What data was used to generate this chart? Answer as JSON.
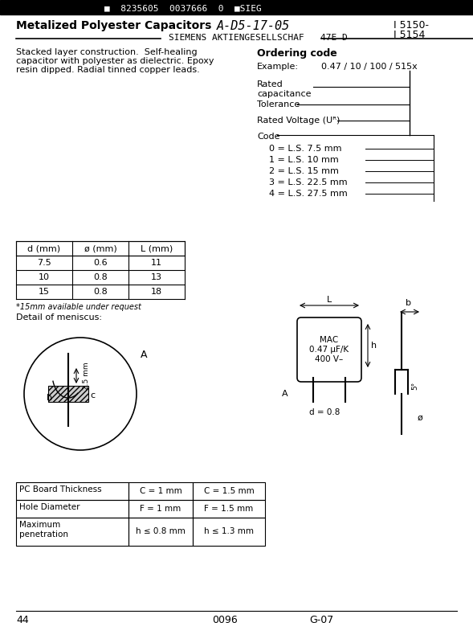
{
  "bg_color": "#ffffff",
  "title_barcode": "8235605  0037666  0",
  "title_sieg": "SIEG",
  "title_main": "Metalized Polyester Capacitors",
  "title_code": "A-D5-17-05",
  "title_part1": "I 5150-",
  "title_part2": "I 5154",
  "subtitle": "SIEMENS AKTIENGESELLSCHAF   47E D",
  "desc_line1": "Stacked layer construction.  Self-healing",
  "desc_line2": "capacitor with polyester as dielectric. Epoxy",
  "desc_line3": "resin dipped. Radial tinned copper leads.",
  "ordering_title": "Ordering code",
  "example_label": "Example:",
  "example_value": "0.47 / 10 / 100 / 515x",
  "labels": [
    "Rated\ncapacitance",
    "Tolerance",
    "Rated Voltage (U₀)",
    "Code"
  ],
  "code_items": [
    "0 = L.S. 7.5 mm",
    "1 = L.S. 10 mm",
    "2 = L.S. 15 mm",
    "3 = L.S. 22.5 mm",
    "4 = L.S. 27.5 mm"
  ],
  "table_headers": [
    "d (mm)",
    "ø (mm)",
    "L (mm)"
  ],
  "table_rows": [
    [
      "7.5",
      "0.6",
      "11"
    ],
    [
      "10",
      "0.8",
      "13"
    ],
    [
      "15",
      "0.8",
      "18"
    ]
  ],
  "table_note": "*15mm available under request",
  "detail_title": "Detail of meniscus:",
  "cap_label": "MAC\n0.47 µF/K\n400 V–",
  "pc_board_label": "PC Board Thickness",
  "pc_board_c1": "C = 1 mm",
  "pc_board_c2": "C = 1.5 mm",
  "hole_label": "Hole Diameter",
  "hole_f1": "F = 1 mm",
  "hole_f2": "F = 1.5 mm",
  "max_pen_label": "Maximum\npenetration",
  "max_pen_h1": "h ≤ 0.8 mm",
  "max_pen_h2": "h ≤ 1.3 mm",
  "page_num": "44",
  "doc_num": "0096",
  "doc_code": "G-07"
}
